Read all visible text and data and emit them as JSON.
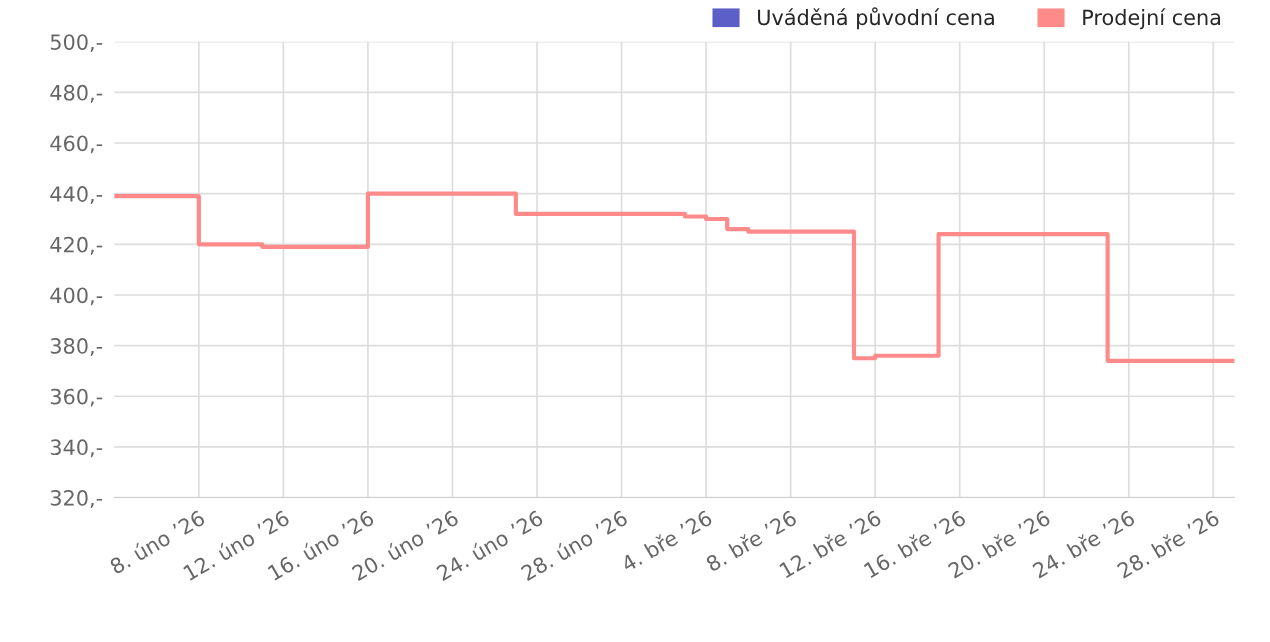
{
  "chart_data": {
    "type": "step",
    "x": [
      "2026-02-04",
      "2026-02-08",
      "2026-02-11",
      "2026-02-16",
      "2026-02-23",
      "2026-03-03",
      "2026-03-04",
      "2026-03-05",
      "2026-03-06",
      "2026-03-11",
      "2026-03-12",
      "2026-03-15",
      "2026-03-23",
      "2026-03-29"
    ],
    "series": [
      {
        "name": "Uváděná původní cena",
        "color": "#5b5fc7",
        "values": [
          null,
          null,
          null,
          null,
          null,
          null,
          null,
          null,
          null,
          null,
          null,
          null,
          null,
          null
        ]
      },
      {
        "name": "Prodejní cena",
        "color": "#ff8a8a",
        "values": [
          439,
          420,
          419,
          440,
          432,
          431,
          430,
          426,
          425,
          375,
          376,
          424,
          374,
          374
        ]
      }
    ],
    "xlim": [
      "2026-02-04",
      "2026-03-29"
    ],
    "xticks": [
      {
        "value": "2026-02-08",
        "label": "8. úno ’26"
      },
      {
        "value": "2026-02-12",
        "label": "12. úno ’26"
      },
      {
        "value": "2026-02-16",
        "label": "16. úno ’26"
      },
      {
        "value": "2026-02-20",
        "label": "20. úno ’26"
      },
      {
        "value": "2026-02-24",
        "label": "24. úno ’26"
      },
      {
        "value": "2026-02-28",
        "label": "28. úno ’26"
      },
      {
        "value": "2026-03-04",
        "label": "4. bře ’26"
      },
      {
        "value": "2026-03-08",
        "label": "8. bře ’26"
      },
      {
        "value": "2026-03-12",
        "label": "12. bře ’26"
      },
      {
        "value": "2026-03-16",
        "label": "16. bře ’26"
      },
      {
        "value": "2026-03-20",
        "label": "20. bře ’26"
      },
      {
        "value": "2026-03-24",
        "label": "24. bře ’26"
      },
      {
        "value": "2026-03-28",
        "label": "28. bře ’26"
      }
    ],
    "ylim": [
      320,
      500
    ],
    "yticks": [
      {
        "value": 320,
        "label": "320,-"
      },
      {
        "value": 340,
        "label": "340,-"
      },
      {
        "value": 360,
        "label": "360,-"
      },
      {
        "value": 380,
        "label": "380,-"
      },
      {
        "value": 400,
        "label": "400,-"
      },
      {
        "value": 420,
        "label": "420,-"
      },
      {
        "value": 440,
        "label": "440,-"
      },
      {
        "value": 460,
        "label": "460,-"
      },
      {
        "value": 480,
        "label": "480,-"
      },
      {
        "value": 500,
        "label": "500,-"
      }
    ],
    "grid": true,
    "legend": "top right",
    "marker": "none",
    "line_style": "solid"
  }
}
